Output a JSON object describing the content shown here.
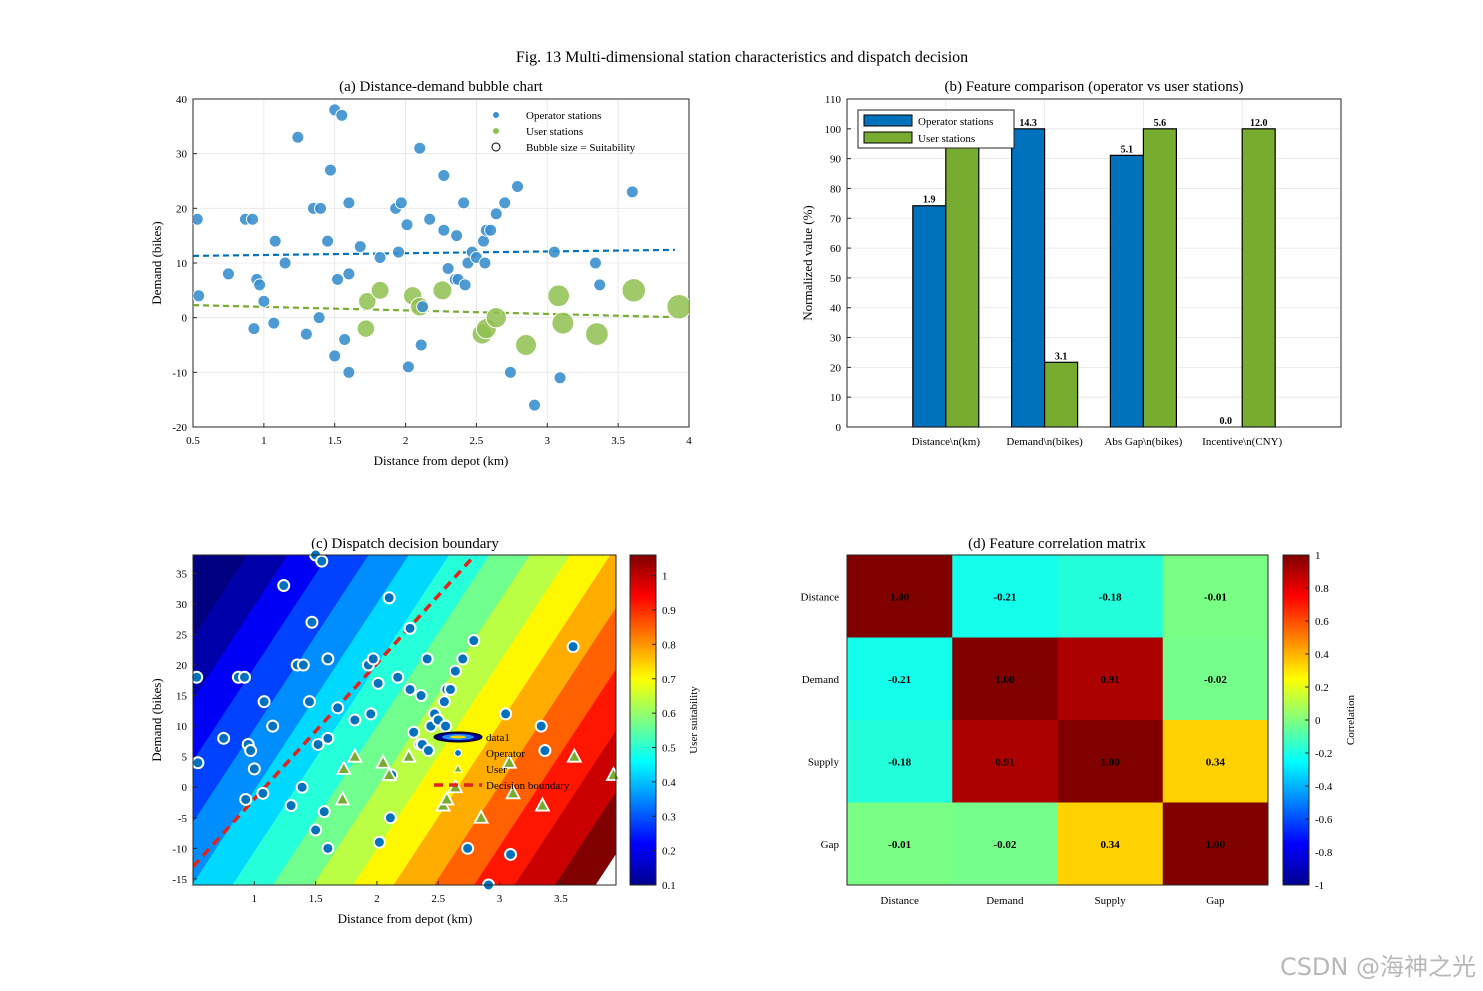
{
  "figure": {
    "title": "Fig. 13 Multi-dimensional station characteristics and dispatch decision",
    "watermark": "CSDN @海神之光"
  },
  "colors": {
    "operator": "#3b8fce",
    "operator_dark": "#0072bd",
    "user": "#8fbf4f",
    "user_bar": "#77ac30",
    "trend_operator": "#0072bd",
    "trend_user": "#77ac30",
    "boundary": "#e0231b"
  },
  "chart_data": [
    {
      "type": "scatter",
      "title": "(a) Distance-demand bubble chart",
      "xlabel": "Distance from depot (km)",
      "ylabel": "Demand (bikes)",
      "xlim": [
        0.5,
        4
      ],
      "ylim": [
        -20,
        40
      ],
      "xticks": [
        "0.5",
        "1",
        "1.5",
        "2",
        "2.5",
        "3",
        "3.5",
        "4"
      ],
      "yticks": [
        "-20",
        "-10",
        "0",
        "10",
        "20",
        "30",
        "40"
      ],
      "grid": true,
      "legend": {
        "position": "top-right",
        "entries": [
          "Operator stations",
          "User stations",
          "Bubble size = Suitability"
        ]
      },
      "series": [
        {
          "name": "Operator stations",
          "points": [
            [
              0.53,
              18
            ],
            [
              0.54,
              4
            ],
            [
              0.75,
              8
            ],
            [
              0.87,
              18
            ],
            [
              0.92,
              18
            ],
            [
              0.93,
              -2
            ],
            [
              0.95,
              7
            ],
            [
              0.97,
              6
            ],
            [
              1.0,
              3
            ],
            [
              1.07,
              -1
            ],
            [
              1.08,
              14
            ],
            [
              1.15,
              10
            ],
            [
              1.24,
              33
            ],
            [
              1.3,
              -3
            ],
            [
              1.35,
              20
            ],
            [
              1.39,
              0
            ],
            [
              1.4,
              20
            ],
            [
              1.45,
              14
            ],
            [
              1.47,
              27
            ],
            [
              1.5,
              38
            ],
            [
              1.5,
              -7
            ],
            [
              1.52,
              7
            ],
            [
              1.55,
              37
            ],
            [
              1.57,
              -4
            ],
            [
              1.6,
              21
            ],
            [
              1.6,
              -10
            ],
            [
              1.6,
              8
            ],
            [
              1.68,
              13
            ],
            [
              1.82,
              11
            ],
            [
              1.93,
              20
            ],
            [
              1.95,
              12
            ],
            [
              1.97,
              21
            ],
            [
              2.01,
              17
            ],
            [
              2.02,
              -9
            ],
            [
              2.1,
              31
            ],
            [
              2.11,
              -5
            ],
            [
              2.12,
              2
            ],
            [
              2.17,
              18
            ],
            [
              2.27,
              16
            ],
            [
              2.27,
              26
            ],
            [
              2.3,
              9
            ],
            [
              2.35,
              7
            ],
            [
              2.36,
              15
            ],
            [
              2.37,
              7
            ],
            [
              2.41,
              21
            ],
            [
              2.42,
              6
            ],
            [
              2.44,
              10
            ],
            [
              2.47,
              12
            ],
            [
              2.5,
              11
            ],
            [
              2.55,
              14
            ],
            [
              2.56,
              10
            ],
            [
              2.57,
              16
            ],
            [
              2.6,
              16
            ],
            [
              2.64,
              19
            ],
            [
              2.7,
              21
            ],
            [
              2.74,
              -10
            ],
            [
              2.79,
              24
            ],
            [
              2.91,
              -16
            ],
            [
              3.05,
              12
            ],
            [
              3.09,
              -11
            ],
            [
              3.34,
              10
            ],
            [
              3.37,
              6
            ],
            [
              3.6,
              23
            ]
          ]
        },
        {
          "name": "User stations",
          "points": [
            [
              1.72,
              -2,
              0.34
            ],
            [
              1.73,
              3,
              0.35
            ],
            [
              1.82,
              5,
              0.37
            ],
            [
              2.05,
              4,
              0.4
            ],
            [
              2.1,
              2,
              0.41
            ],
            [
              2.26,
              5,
              0.44
            ],
            [
              2.54,
              -3,
              0.5
            ],
            [
              2.57,
              -2,
              0.51
            ],
            [
              2.64,
              0,
              0.52
            ],
            [
              2.85,
              -5,
              0.56
            ],
            [
              3.08,
              4,
              0.61
            ],
            [
              3.11,
              -1,
              0.62
            ],
            [
              3.35,
              -3,
              0.67
            ],
            [
              3.61,
              5,
              0.72
            ],
            [
              3.93,
              2,
              0.78
            ]
          ]
        }
      ],
      "trendlines": [
        {
          "name": "Operator stations",
          "x": [
            0.5,
            3.9
          ],
          "y": [
            11.3,
            12.4
          ]
        },
        {
          "name": "User stations",
          "x": [
            0.5,
            3.9
          ],
          "y": [
            2.3,
            0.1
          ]
        }
      ]
    },
    {
      "type": "bar",
      "title": "(b) Feature comparison (operator vs user stations)",
      "xlabel": "",
      "ylabel": "Normalized value (%)",
      "ylim": [
        0,
        110
      ],
      "yticks": [
        "0",
        "10",
        "20",
        "30",
        "40",
        "50",
        "60",
        "70",
        "80",
        "90",
        "100",
        "110"
      ],
      "categories": [
        "Distance\\n(km)",
        "Demand\\n(bikes)",
        "Abs Gap\\n(bikes)",
        "Incentive\\n(CNY)"
      ],
      "legend": {
        "position": "top-left"
      },
      "series": [
        {
          "name": "Operator stations",
          "values": [
            74.2,
            100,
            91.1,
            0
          ],
          "labels": [
            "1.9",
            "14.3",
            "5.1",
            "0.0"
          ]
        },
        {
          "name": "User stations",
          "values": [
            100,
            21.7,
            100,
            100
          ],
          "labels": [
            "",
            "3.1",
            "5.6",
            "12.0"
          ]
        }
      ],
      "grid": true
    },
    {
      "type": "heatmap",
      "title": "(c) Dispatch decision boundary",
      "xlabel": "Distance from depot (km)",
      "ylabel": "Demand (bikes)",
      "xlim": [
        0.5,
        3.95
      ],
      "ylim": [
        -16,
        38
      ],
      "xticks": [
        "1",
        "1.5",
        "2",
        "2.5",
        "3",
        "3.5"
      ],
      "yticks": [
        "-15",
        "-10",
        "-5",
        "0",
        "5",
        "10",
        "15",
        "20",
        "25",
        "30",
        "35"
      ],
      "colorbar": {
        "label": "User suitability",
        "ticks": [
          "0.1",
          "0.2",
          "0.3",
          "0.4",
          "0.5",
          "0.6",
          "0.7",
          "0.8",
          "0.9",
          "1"
        ],
        "range": [
          0.1,
          1.06
        ]
      },
      "boundary": {
        "name": "Decision boundary",
        "x": [
          0.5,
          2.8
        ],
        "y": [
          -13,
          38
        ]
      },
      "legend": {
        "position": "center-right",
        "entries": [
          "data1",
          "Operator",
          "User",
          "Decision boundary"
        ]
      }
    },
    {
      "type": "heatmap",
      "title": "(d) Feature correlation matrix",
      "labels": [
        "Distance",
        "Demand",
        "Supply",
        "Gap"
      ],
      "values": [
        [
          1.0,
          -0.21,
          -0.18,
          -0.01
        ],
        [
          -0.21,
          1.0,
          0.91,
          -0.02
        ],
        [
          -0.18,
          0.91,
          1.0,
          0.34
        ],
        [
          -0.01,
          -0.02,
          0.34,
          1.0
        ]
      ],
      "value_labels": [
        [
          "1.00",
          "-0.21",
          "-0.18",
          "-0.01"
        ],
        [
          "-0.21",
          "1.00",
          "0.91",
          "-0.02"
        ],
        [
          "-0.18",
          "0.91",
          "1.00",
          "0.34"
        ],
        [
          "-0.01",
          "-0.02",
          "0.34",
          "1.00"
        ]
      ],
      "colorbar": {
        "label": "Correlation",
        "ticks": [
          "-1",
          "-0.8",
          "-0.6",
          "-0.4",
          "-0.2",
          "0",
          "0.2",
          "0.4",
          "0.6",
          "0.8",
          "1"
        ],
        "range": [
          -1,
          1
        ]
      }
    }
  ]
}
